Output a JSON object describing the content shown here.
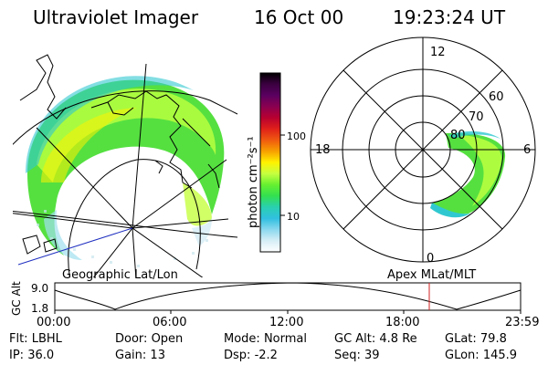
{
  "header": {
    "title": "Ultraviolet Imager",
    "date": "16 Oct 00",
    "time": "19:23:24 UT"
  },
  "colorbar": {
    "unit_label": "photon cm⁻²s⁻¹",
    "ticks": [
      "100",
      "10"
    ],
    "colors": [
      "#000000",
      "#3b0040",
      "#5a0060",
      "#8a0050",
      "#b80030",
      "#e0201a",
      "#f05a10",
      "#f7a000",
      "#fff200",
      "#c6ff40",
      "#66f030",
      "#33e050",
      "#2ad0b0",
      "#30c0e0",
      "#8ad8ee",
      "#d6eef6",
      "#ffffff"
    ]
  },
  "labels": {
    "geo": "Geographic Lat/Lon",
    "apex": "Apex MLat/MLT"
  },
  "polar": {
    "clock": {
      "top": "12",
      "left": "18",
      "right": "6",
      "bottom": "0"
    },
    "lat_labels": [
      "60",
      "70",
      "80"
    ]
  },
  "timeline": {
    "axis_label": "GC Alt",
    "y_ticks": [
      "9.0",
      "1.8"
    ],
    "x_ticks": [
      "00:00",
      "06:00",
      "12:00",
      "18:00",
      "23:59"
    ],
    "marker_color": "#d02020"
  },
  "info": {
    "row1": [
      {
        "key": "Flt:",
        "value": "LBHL"
      },
      {
        "key": "Door:",
        "value": "Open"
      },
      {
        "key": "Mode:",
        "value": "Normal"
      },
      {
        "key": "GC Alt:",
        "value": "4.8 Re"
      },
      {
        "key": "GLat:",
        "value": "79.8"
      }
    ],
    "row2": [
      {
        "key": "IP:",
        "value": "36.0"
      },
      {
        "key": "Gain:",
        "value": "13"
      },
      {
        "key": "Dsp:",
        "value": "-2.2"
      },
      {
        "key": "Seq:",
        "value": "39"
      },
      {
        "key": "GLon:",
        "value": "145.9"
      }
    ]
  }
}
